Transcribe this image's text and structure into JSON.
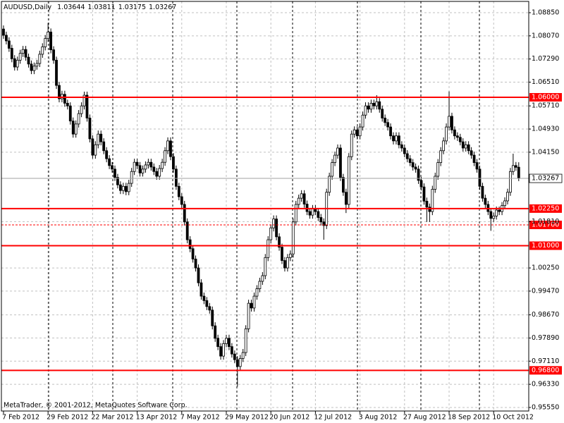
{
  "chart_data": {
    "type": "candlestick",
    "title": "AUDUSD,Daily",
    "credit": "MetaTrader, © 2001-2012, MetaQuotes Software Corp.",
    "up_color": "#ffffff",
    "down_color": "#000000",
    "line_color": "#ff0000",
    "grid": true,
    "xlim": [
      -0.75,
      188.6
    ],
    "ylim": [
      0.9543,
      1.0923
    ],
    "xticks": [
      {
        "value": 0,
        "label": "7 Feb 2012"
      },
      {
        "value": 16,
        "label": "29 Feb 2012"
      },
      {
        "value": 32,
        "label": "22 Mar 2012"
      },
      {
        "value": 48,
        "label": "13 Apr 2012"
      },
      {
        "value": 64,
        "label": "7 May 2012"
      },
      {
        "value": 80,
        "label": "29 May 2012"
      },
      {
        "value": 96,
        "label": "20 Jun 2012"
      },
      {
        "value": 112,
        "label": "12 Jul 2012"
      },
      {
        "value": 128,
        "label": "3 Aug 2012"
      },
      {
        "value": 144,
        "label": "27 Aug 2012"
      },
      {
        "value": 160,
        "label": "18 Sep 2012"
      },
      {
        "value": 176,
        "label": "10 Oct 2012"
      }
    ],
    "yticks": [
      {
        "value": 1.0885,
        "label": "1.08850"
      },
      {
        "value": 1.0807,
        "label": "1.08070"
      },
      {
        "value": 1.0729,
        "label": "1.07290"
      },
      {
        "value": 1.0651,
        "label": "1.06510"
      },
      {
        "value": 1.0571,
        "label": "1.05710"
      },
      {
        "value": 1.0493,
        "label": "1.04930"
      },
      {
        "value": 1.0415,
        "label": "1.04150"
      },
      {
        "value": 1.0181,
        "label": "1.01810"
      },
      {
        "value": 1.0025,
        "label": "1.00250"
      },
      {
        "value": 0.9947,
        "label": "0.99470"
      },
      {
        "value": 0.9867,
        "label": "0.98670"
      },
      {
        "value": 0.9789,
        "label": "0.97890"
      },
      {
        "value": 0.9711,
        "label": "0.97110"
      },
      {
        "value": 0.9633,
        "label": "0.96330"
      },
      {
        "value": 0.9555,
        "label": "0.95550"
      }
    ],
    "hlines": [
      {
        "value": 1.06,
        "label": "1.06000"
      },
      {
        "value": 1.0225,
        "label": "1.02250"
      },
      {
        "value": 1.017,
        "label": "1.01700",
        "dashed": true
      },
      {
        "value": 1.01,
        "label": "1.01000"
      },
      {
        "value": 0.968,
        "label": "0.96800"
      }
    ],
    "open": [
      1.083,
      1.0809,
      1.079,
      1.0765,
      1.073,
      1.0702,
      1.0725,
      1.0748,
      1.0761,
      1.0735,
      1.0712,
      1.069,
      1.0705,
      1.0714,
      1.0745,
      1.077,
      1.0798,
      1.082,
      1.076,
      1.0725,
      1.064,
      1.0595,
      1.061,
      1.058,
      1.0571,
      1.052,
      1.0476,
      1.051,
      1.0545,
      1.0571,
      1.0607,
      1.053,
      1.046,
      1.0405,
      1.044,
      1.0476,
      1.045,
      1.042,
      1.0393,
      1.037,
      1.0358,
      1.033,
      1.0305,
      1.0286,
      1.03,
      1.0282,
      1.031,
      1.035,
      1.0381,
      1.037,
      1.0345,
      1.0358,
      1.0372,
      1.0381,
      1.0365,
      1.035,
      1.0334,
      1.036,
      1.0381,
      1.042,
      1.0453,
      1.04,
      1.0358,
      1.03,
      1.0265,
      1.0239,
      1.018,
      1.012,
      1.009,
      1.0055,
      1.0025,
      0.9975,
      0.993,
      0.9915,
      0.9895,
      0.9883,
      0.983,
      0.9788,
      0.976,
      0.9728,
      0.977,
      0.9788,
      0.976,
      0.9735,
      0.9716,
      0.9693,
      0.972,
      0.974,
      0.982,
      0.9906,
      0.989,
      0.993,
      0.9955,
      0.998,
      0.9999,
      1.006,
      1.012,
      1.016,
      1.019,
      1.013,
      1.0095,
      1.005,
      1.0025,
      1.006,
      1.0072,
      1.018,
      1.0239,
      1.026,
      1.0275,
      1.024,
      1.0215,
      1.0203,
      1.0225,
      1.0215,
      1.0195,
      1.018,
      1.0168,
      1.028,
      1.0334,
      1.038,
      1.0405,
      1.0429,
      1.033,
      1.028,
      1.0239,
      1.04,
      1.0476,
      1.049,
      1.047,
      1.05,
      1.054,
      1.0571,
      1.056,
      1.058,
      1.0571,
      1.0585,
      1.056,
      1.053,
      1.0515,
      1.05,
      1.047,
      1.0453,
      1.047,
      1.044,
      1.0429,
      1.041,
      1.0393,
      1.038,
      1.0365,
      1.0358,
      1.032,
      1.0298,
      1.025,
      1.023,
      1.0215,
      1.029,
      1.0334,
      1.038,
      1.042,
      1.0453,
      1.05,
      1.0536,
      1.049,
      1.047,
      1.0465,
      1.045,
      1.0429,
      1.044,
      1.042,
      1.0405,
      1.038,
      1.0358,
      1.03,
      1.026,
      1.0239,
      1.0215,
      1.0192,
      1.02,
      1.022,
      1.0215,
      1.0235,
      1.0251,
      1.028,
      1.035,
      1.037,
      1.03644
    ],
    "high": [
      1.0842,
      1.0821,
      1.0802,
      1.0777,
      1.0742,
      1.0737,
      1.076,
      1.0773,
      1.0773,
      1.0747,
      1.0724,
      1.0717,
      1.0726,
      1.0757,
      1.0782,
      1.081,
      1.085,
      1.0832,
      1.0772,
      1.0737,
      1.0652,
      1.0622,
      1.0622,
      1.0592,
      1.0583,
      1.0532,
      1.0522,
      1.0557,
      1.0583,
      1.0619,
      1.0619,
      1.0542,
      1.0472,
      1.0452,
      1.0488,
      1.0488,
      1.0462,
      1.0432,
      1.0405,
      1.0382,
      1.037,
      1.0342,
      1.0317,
      1.0312,
      1.0312,
      1.0322,
      1.0362,
      1.0393,
      1.0393,
      1.0382,
      1.037,
      1.0384,
      1.0393,
      1.0393,
      1.0377,
      1.0362,
      1.0372,
      1.0393,
      1.0432,
      1.0465,
      1.0465,
      1.0412,
      1.037,
      1.0312,
      1.0277,
      1.0251,
      1.0192,
      1.0132,
      1.0102,
      1.0067,
      1.0037,
      0.9987,
      0.9942,
      0.9927,
      0.9907,
      0.9895,
      0.9842,
      0.98,
      0.9772,
      0.9782,
      0.98,
      0.98,
      0.9772,
      0.9747,
      0.9728,
      0.9732,
      0.9752,
      0.9832,
      0.9918,
      0.9918,
      0.9942,
      0.9967,
      0.9992,
      1.0011,
      1.0072,
      1.0132,
      1.0172,
      1.0202,
      1.0202,
      1.0142,
      1.0107,
      1.0062,
      1.0072,
      1.0084,
      1.0192,
      1.0251,
      1.0272,
      1.0287,
      1.0287,
      1.0252,
      1.0227,
      1.0237,
      1.0237,
      1.0227,
      1.0207,
      1.0192,
      1.0292,
      1.0346,
      1.0392,
      1.0417,
      1.0441,
      1.0441,
      1.0342,
      1.0292,
      1.0412,
      1.0488,
      1.0502,
      1.0502,
      1.0512,
      1.0552,
      1.0583,
      1.0583,
      1.0592,
      1.0592,
      1.0607,
      1.0597,
      1.0572,
      1.0542,
      1.0527,
      1.0512,
      1.0482,
      1.0482,
      1.0482,
      1.0452,
      1.0441,
      1.0422,
      1.0405,
      1.0392,
      1.0377,
      1.037,
      1.0332,
      1.031,
      1.0262,
      1.0242,
      1.0302,
      1.0346,
      1.0392,
      1.0432,
      1.0465,
      1.0512,
      1.062,
      1.0548,
      1.0502,
      1.0482,
      1.0477,
      1.0462,
      1.0452,
      1.0452,
      1.0432,
      1.0417,
      1.0392,
      1.037,
      1.0312,
      1.0272,
      1.0251,
      1.0227,
      1.0212,
      1.0232,
      1.0232,
      1.0247,
      1.0263,
      1.0292,
      1.0362,
      1.041,
      1.0382,
      1.03811
    ],
    "low": [
      1.0797,
      1.0778,
      1.0753,
      1.0718,
      1.069,
      1.069,
      1.0713,
      1.0736,
      1.0723,
      1.07,
      1.0678,
      1.0678,
      1.0693,
      1.0702,
      1.0733,
      1.0758,
      1.0786,
      1.0748,
      1.0713,
      1.0628,
      1.0583,
      1.0583,
      1.0568,
      1.0559,
      1.0508,
      1.0464,
      1.0464,
      1.0498,
      1.0533,
      1.0559,
      1.0518,
      1.0448,
      1.0393,
      1.0393,
      1.0428,
      1.0438,
      1.0408,
      1.0381,
      1.0358,
      1.0346,
      1.0318,
      1.0293,
      1.0274,
      1.0274,
      1.027,
      1.027,
      1.0298,
      1.0338,
      1.0358,
      1.0333,
      1.0333,
      1.0346,
      1.036,
      1.0353,
      1.0338,
      1.0322,
      1.0322,
      1.0348,
      1.0369,
      1.0408,
      1.0388,
      1.0346,
      1.0288,
      1.0253,
      1.0227,
      1.0168,
      1.0108,
      1.0078,
      1.0043,
      1.0013,
      0.9963,
      0.9918,
      0.9903,
      0.9883,
      0.9871,
      0.9818,
      0.9776,
      0.9748,
      0.9716,
      0.9716,
      0.9758,
      0.9748,
      0.9723,
      0.9704,
      0.9625,
      0.9681,
      0.9708,
      0.9728,
      0.9808,
      0.9878,
      0.9878,
      0.9918,
      0.9943,
      0.9968,
      0.9987,
      1.0048,
      1.0108,
      1.0148,
      1.0118,
      1.0083,
      1.0038,
      1.0013,
      1.0013,
      1.0048,
      1.006,
      1.0168,
      1.0227,
      1.0248,
      1.0228,
      1.0203,
      1.0191,
      1.0191,
      1.0203,
      1.0183,
      1.0168,
      1.012,
      1.0156,
      1.0268,
      1.0322,
      1.0368,
      1.0393,
      1.0318,
      1.0268,
      1.021,
      1.0227,
      1.0388,
      1.0464,
      1.0458,
      1.0458,
      1.0488,
      1.0528,
      1.0548,
      1.0548,
      1.0559,
      1.0559,
      1.0548,
      1.0518,
      1.0503,
      1.0488,
      1.0458,
      1.0441,
      1.0441,
      1.0428,
      1.0417,
      1.0398,
      1.0381,
      1.0368,
      1.0353,
      1.0346,
      1.0308,
      1.0286,
      1.0238,
      1.018,
      1.018,
      1.0203,
      1.0278,
      1.0322,
      1.0368,
      1.0408,
      1.0441,
      1.0488,
      1.0478,
      1.0458,
      1.0453,
      1.0438,
      1.0417,
      1.0417,
      1.0408,
      1.0393,
      1.0368,
      1.0346,
      1.0288,
      1.0248,
      1.0227,
      1.0203,
      1.015,
      1.018,
      1.0188,
      1.0203,
      1.0203,
      1.0223,
      1.0239,
      1.0268,
      1.0338,
      1.0352,
      1.03175
    ],
    "close": [
      1.0809,
      1.079,
      1.0765,
      1.073,
      1.0702,
      1.0725,
      1.0748,
      1.0761,
      1.0735,
      1.0712,
      1.069,
      1.0705,
      1.0714,
      1.0745,
      1.077,
      1.0798,
      1.082,
      1.076,
      1.0725,
      1.064,
      1.0595,
      1.061,
      1.058,
      1.0571,
      1.052,
      1.0476,
      1.051,
      1.0545,
      1.0571,
      1.0607,
      1.053,
      1.046,
      1.0405,
      1.044,
      1.0476,
      1.045,
      1.042,
      1.0393,
      1.037,
      1.0358,
      1.033,
      1.0305,
      1.0286,
      1.03,
      1.0282,
      1.031,
      1.035,
      1.0381,
      1.037,
      1.0345,
      1.0358,
      1.0372,
      1.0381,
      1.0365,
      1.035,
      1.0334,
      1.036,
      1.0381,
      1.042,
      1.0453,
      1.04,
      1.0358,
      1.03,
      1.0265,
      1.0239,
      1.018,
      1.012,
      1.009,
      1.0055,
      1.0025,
      0.9975,
      0.993,
      0.9915,
      0.9895,
      0.9883,
      0.983,
      0.9788,
      0.976,
      0.9728,
      0.977,
      0.9788,
      0.976,
      0.9735,
      0.9716,
      0.9693,
      0.972,
      0.974,
      0.982,
      0.9906,
      0.989,
      0.993,
      0.9955,
      0.998,
      0.9999,
      1.006,
      1.012,
      1.016,
      1.019,
      1.013,
      1.0095,
      1.005,
      1.0025,
      1.006,
      1.0072,
      1.018,
      1.0239,
      1.026,
      1.0275,
      1.024,
      1.0215,
      1.0203,
      1.0225,
      1.0215,
      1.0195,
      1.018,
      1.0168,
      1.028,
      1.0334,
      1.038,
      1.0405,
      1.0429,
      1.033,
      1.028,
      1.0239,
      1.04,
      1.0476,
      1.049,
      1.047,
      1.05,
      1.054,
      1.0571,
      1.056,
      1.058,
      1.0571,
      1.0585,
      1.056,
      1.053,
      1.0515,
      1.05,
      1.047,
      1.0453,
      1.047,
      1.044,
      1.0429,
      1.041,
      1.0393,
      1.038,
      1.0365,
      1.0358,
      1.032,
      1.0298,
      1.025,
      1.023,
      1.0215,
      1.029,
      1.0334,
      1.038,
      1.042,
      1.0453,
      1.05,
      1.0536,
      1.049,
      1.047,
      1.0465,
      1.045,
      1.0429,
      1.044,
      1.042,
      1.0405,
      1.038,
      1.0358,
      1.03,
      1.026,
      1.0239,
      1.0215,
      1.0192,
      1.02,
      1.022,
      1.0215,
      1.0235,
      1.0251,
      1.028,
      1.035,
      1.037,
      1.0364,
      1.03267
    ]
  }
}
